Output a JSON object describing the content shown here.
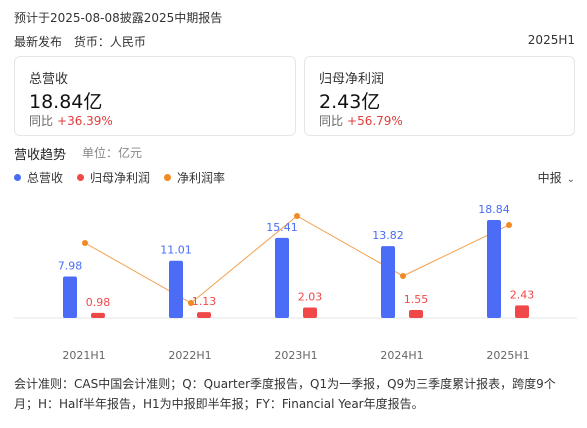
{
  "header": {
    "notice": "预计于2025-08-08披露2025中期报告",
    "release": "最新发布",
    "currency": "货币：人民币",
    "period": "2025H1"
  },
  "cards": [
    {
      "title": "总营收",
      "value": "18.84亿",
      "change_label": "同比",
      "change": "+36.39%"
    },
    {
      "title": "归母净利润",
      "value": "2.43亿",
      "change_label": "同比",
      "change": "+56.79%"
    }
  ],
  "section": {
    "title": "营收趋势",
    "unit": "单位：亿元"
  },
  "legend": [
    {
      "label": "总营收",
      "color": "#4a6cf7"
    },
    {
      "label": "归母净利润",
      "color": "#f04848"
    },
    {
      "label": "净利润率",
      "color": "#f08a24"
    }
  ],
  "selector": {
    "label": "中报",
    "icon": "chevron-down-icon"
  },
  "chart_data": {
    "type": "bar",
    "categories": [
      "2021H1",
      "2022H1",
      "2023H1",
      "2024H1",
      "2025H1"
    ],
    "series": [
      {
        "name": "总营收",
        "kind": "bar",
        "values": [
          7.98,
          11.01,
          15.41,
          13.82,
          18.84
        ],
        "color": "#4a6cf7"
      },
      {
        "name": "归母净利润",
        "kind": "bar",
        "values": [
          0.98,
          1.13,
          2.03,
          1.55,
          2.43
        ],
        "color": "#f04848"
      },
      {
        "name": "净利润率",
        "kind": "line",
        "values": [
          12.3,
          10.3,
          13.2,
          11.2,
          12.9
        ],
        "color": "#f08a24"
      }
    ],
    "ylim": [
      0,
      20
    ]
  },
  "footnote": "会计准则：CAS中国会计准则；Q：Quarter季度报告，Q1为一季报，Q9为三季度累计报表，跨度9个月；H：Half半年报告，H1为中报即半年报；FY：Financial Year年度报告。"
}
